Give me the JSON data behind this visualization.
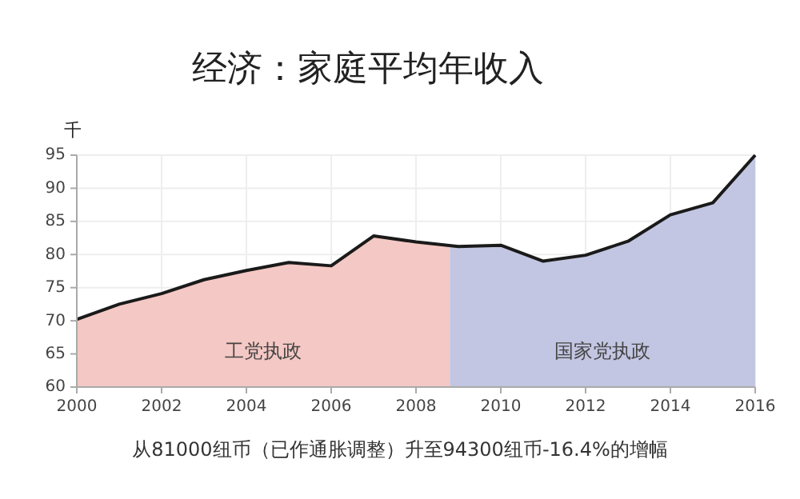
{
  "chart_data": {
    "type": "area",
    "title": "经济：家庭平均年收入",
    "ylabel": "千",
    "series": [
      {
        "color": "#f4c8c4",
        "x": [
          2000,
          2001,
          2002,
          2003,
          2004,
          2005,
          2006,
          2007,
          2008,
          2008.8
        ],
        "values": [
          70.2,
          72.5,
          74.1,
          76.2,
          77.6,
          78.8,
          78.3,
          82.8,
          81.9,
          81.3
        ]
      },
      {
        "color": "#c3c6e2",
        "x": [
          2008.8,
          2009,
          2010,
          2011,
          2012,
          2013,
          2014,
          2015,
          2016
        ],
        "values": [
          81.3,
          81.2,
          81.4,
          79.0,
          79.9,
          82.0,
          86.0,
          87.8,
          95.0
        ]
      },
      {
        "type": "line",
        "color": "#1a1a1a",
        "x": [
          2000,
          2001,
          2002,
          2003,
          2004,
          2005,
          2006,
          2007,
          2008,
          2009,
          2010,
          2011,
          2012,
          2013,
          2014,
          2015,
          2016
        ],
        "values": [
          70.2,
          72.5,
          74.1,
          76.2,
          77.6,
          78.8,
          78.3,
          82.8,
          81.9,
          81.2,
          81.4,
          79.0,
          79.9,
          82.0,
          86.0,
          87.8,
          95.0
        ]
      }
    ],
    "xlim": [
      2000,
      2016
    ],
    "xticks": [
      2000,
      2002,
      2004,
      2006,
      2008,
      2010,
      2012,
      2014,
      2016
    ],
    "ylim": [
      60,
      95
    ],
    "yticks": [
      60,
      65,
      70,
      75,
      80,
      85,
      90,
      95
    ],
    "grid": true,
    "annotations": [
      "工党执政",
      "国家党执政",
      "从81000纽币（已作通胀调整）升至94300纽币-16.4%的增幅"
    ]
  }
}
